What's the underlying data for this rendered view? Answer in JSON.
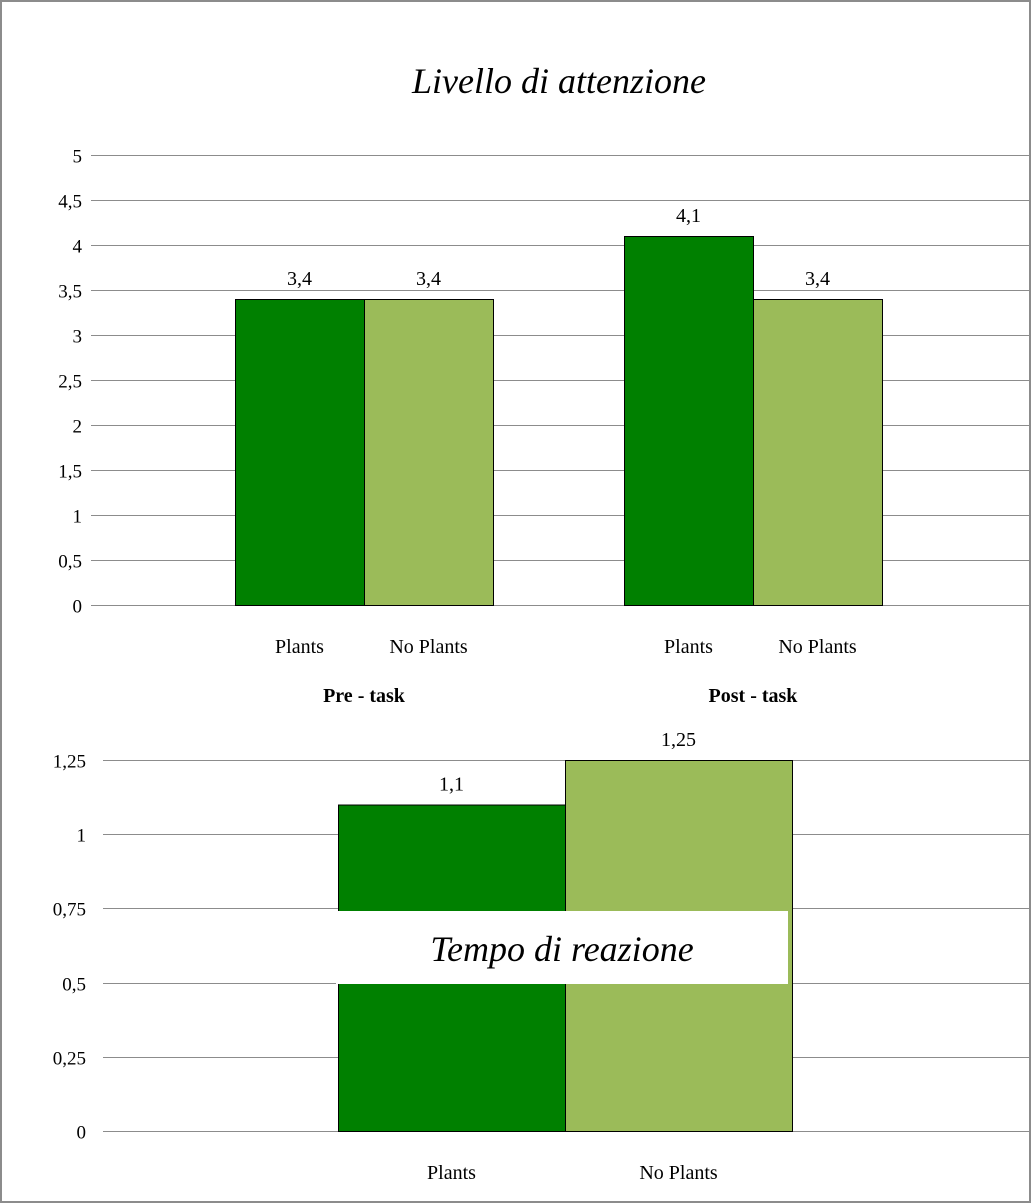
{
  "chart_data": [
    {
      "type": "bar",
      "title": "Livello di attenzione",
      "ylim": [
        0,
        5
      ],
      "yticks": [
        0,
        0.5,
        1,
        1.5,
        2,
        2.5,
        3,
        3.5,
        4,
        4.5,
        5
      ],
      "ytick_labels": [
        "0",
        "0,5",
        "1",
        "1,5",
        "2",
        "2,5",
        "3",
        "3,5",
        "4",
        "4,5",
        "5"
      ],
      "grid": true,
      "groups": [
        {
          "label": "Pre - task",
          "categories": [
            "Plants",
            "No Plants"
          ],
          "values": [
            3.4,
            3.4
          ],
          "value_labels": [
            "3,4",
            "3,4"
          ]
        },
        {
          "label": "Post - task",
          "categories": [
            "Plants",
            "No Plants"
          ],
          "values": [
            4.1,
            3.4
          ],
          "value_labels": [
            "4,1",
            "3,4"
          ]
        }
      ],
      "colors": {
        "Plants": "#008000",
        "No Plants": "#9bbb59"
      }
    },
    {
      "type": "bar",
      "title": "Tempo di reazione",
      "ylim": [
        0,
        1.25
      ],
      "yticks": [
        0,
        0.25,
        0.5,
        0.75,
        1,
        1.25
      ],
      "ytick_labels": [
        "0",
        "0,25",
        "0,5",
        "0,75",
        "1",
        "1,25"
      ],
      "grid": true,
      "categories": [
        "Plants",
        "No Plants"
      ],
      "values": [
        1.1,
        1.25
      ],
      "value_labels": [
        "1,1",
        "1,25"
      ],
      "colors": {
        "Plants": "#008000",
        "No Plants": "#9bbb59"
      }
    }
  ]
}
